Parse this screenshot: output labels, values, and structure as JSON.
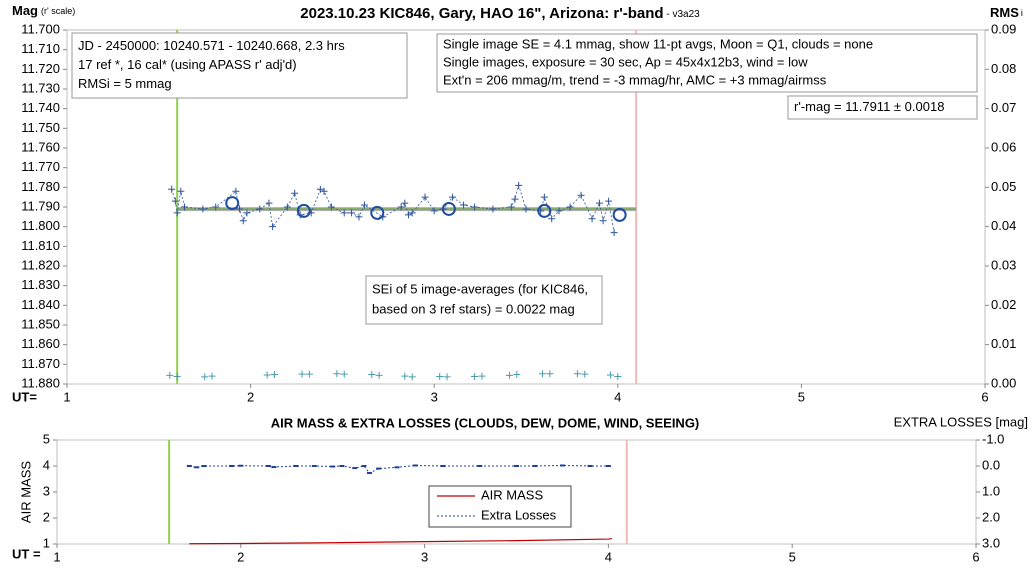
{
  "chart_data": [
    {
      "type": "line",
      "title": "2023.10.23 KIC846, Gary, HAO 16\", Arizona: r'-band",
      "subtitle": " - v3a23",
      "ylabel": "Mag",
      "ylabel_note": "(r' scale)",
      "y2label": "RMS",
      "y2label_note": "i",
      "xlabel": "UT=",
      "xlim": [
        1,
        6
      ],
      "xticks": [
        1,
        2,
        3,
        4,
        5,
        6
      ],
      "ylim": [
        11.7,
        11.88
      ],
      "yreverse": true,
      "yticks": [
        {
          "value": 11.7,
          "label": "11.700"
        },
        {
          "value": 11.71,
          "label": "11.710"
        },
        {
          "value": 11.72,
          "label": "11.720"
        },
        {
          "value": 11.73,
          "label": "11.730"
        },
        {
          "value": 11.74,
          "label": "11.740"
        },
        {
          "value": 11.75,
          "label": "11.750"
        },
        {
          "value": 11.76,
          "label": "11.760"
        },
        {
          "value": 11.77,
          "label": "11.770"
        },
        {
          "value": 11.78,
          "label": "11.780"
        },
        {
          "value": 11.79,
          "label": "11.790"
        },
        {
          "value": 11.8,
          "label": "11.800"
        },
        {
          "value": 11.81,
          "label": "11.810"
        },
        {
          "value": 11.82,
          "label": "11.820"
        },
        {
          "value": 11.83,
          "label": "11.830"
        },
        {
          "value": 11.84,
          "label": "11.840"
        },
        {
          "value": 11.85,
          "label": "11.850"
        },
        {
          "value": 11.86,
          "label": "11.860"
        },
        {
          "value": 11.87,
          "label": "11.870"
        },
        {
          "value": 11.88,
          "label": "11.880"
        }
      ],
      "y2lim": [
        0,
        0.09
      ],
      "y2ticks": [
        {
          "value": 0,
          "label": "0.00"
        },
        0.01,
        0.02,
        0.03,
        0.04,
        0.05,
        0.06,
        0.07,
        0.08,
        0.09
      ],
      "vlines": [
        {
          "x": 1.6,
          "color": "#92d050"
        },
        {
          "x": 4.1,
          "color": "#f4b6b6"
        }
      ],
      "annotations": [
        {
          "lines": [
            "JD - 2450000: 10240.571 - 10240.668, 2.3 hrs",
            "17 ref *, 16 cal* (using APASS r' adj'd)",
            "RMSi = 5 mmag"
          ]
        },
        {
          "lines": [
            "Single image SE = 4.1 mmag, show  11-pt avgs, Moon = Q1, clouds = none",
            "Single images, exposure = 30 sec, Ap = 45x4x12b3, wind = low",
            "Ext'n = 206 mmag/m, trend = -3  mmag/hr, AMC = +3 mmag/airmss"
          ]
        },
        {
          "lines": [
            "r'-mag = 11.7911 ± 0.0018"
          ]
        },
        {
          "lines": [
            "SEi of 5 image-averages (for KIC846,",
            "based on 3 ref stars) = 0.0022 mag"
          ]
        }
      ],
      "series": [
        {
          "color": "#b0b0b0",
          "line": "solid",
          "width": 4,
          "marker": "none",
          "x": [
            1.6,
            4.1
          ],
          "values": [
            11.7911,
            11.7911
          ]
        },
        {
          "color": "#70ad47",
          "line": "solid",
          "width": 1.5,
          "marker": "none",
          "x": [
            1.6,
            4.1
          ],
          "values": [
            11.7911,
            11.7911
          ]
        },
        {
          "color": "#2f5597",
          "line": "dashed",
          "width": 0.8,
          "marker": "plus",
          "x": [
            1.57,
            1.59,
            1.6,
            1.62,
            1.64,
            1.74,
            1.81,
            1.92,
            1.94,
            1.96,
            1.98,
            2.05,
            2.1,
            2.12,
            2.2,
            2.24,
            2.27,
            2.33,
            2.38,
            2.4,
            2.44,
            2.51,
            2.55,
            2.59,
            2.62,
            2.72,
            2.82,
            2.84,
            2.86,
            2.88,
            2.95,
            3.0,
            3.05,
            3.1,
            3.16,
            3.22,
            3.32,
            3.42,
            3.44,
            3.46,
            3.5,
            3.58,
            3.6,
            3.64,
            3.68,
            3.74,
            3.8,
            3.86,
            3.9,
            3.92,
            3.95,
            3.98
          ],
          "values": [
            11.781,
            11.787,
            11.793,
            11.782,
            11.79,
            11.791,
            11.79,
            11.782,
            11.791,
            11.797,
            11.793,
            11.791,
            11.788,
            11.8,
            11.79,
            11.783,
            11.794,
            11.793,
            11.781,
            11.782,
            11.79,
            11.793,
            11.793,
            11.795,
            11.789,
            11.795,
            11.79,
            11.788,
            11.794,
            11.793,
            11.785,
            11.792,
            11.791,
            11.785,
            11.789,
            11.79,
            11.791,
            11.79,
            11.786,
            11.779,
            11.791,
            11.792,
            11.785,
            11.796,
            11.792,
            11.79,
            11.784,
            11.796,
            11.788,
            11.797,
            11.787,
            11.803
          ]
        },
        {
          "color": "#1f4e9f",
          "line": "none",
          "marker": "circle",
          "x": [
            1.9,
            2.29,
            2.69,
            3.08,
            3.6,
            4.01
          ],
          "values": [
            11.788,
            11.792,
            11.793,
            11.791,
            11.792,
            11.794
          ]
        },
        {
          "color": "#4a9bb0",
          "line": "none",
          "marker": "plus",
          "axis": "y2",
          "x": [
            1.56,
            1.6,
            1.75,
            1.79,
            2.09,
            2.13,
            2.28,
            2.32,
            2.47,
            2.51,
            2.66,
            2.7,
            2.84,
            2.88,
            3.03,
            3.07,
            3.22,
            3.26,
            3.41,
            3.45,
            3.59,
            3.63,
            3.78,
            3.82,
            3.96,
            4.0
          ],
          "values": [
            0.0022,
            0.0019,
            0.0018,
            0.002,
            0.0023,
            0.0024,
            0.0025,
            0.0025,
            0.0026,
            0.0025,
            0.0024,
            0.0022,
            0.002,
            0.0018,
            0.0019,
            0.0018,
            0.0019,
            0.002,
            0.0022,
            0.0024,
            0.0026,
            0.0026,
            0.0026,
            0.0025,
            0.0023,
            0.0019
          ]
        }
      ]
    },
    {
      "type": "line",
      "title": "AIR MASS & EXTRA LOSSES (CLOUDS, DEW, DOME, WIND, SEEING)",
      "ylabel": "AIR MASS",
      "y2label": "EXTRA LOSSES [mag]",
      "xlabel": "UT =",
      "xlim": [
        1,
        6
      ],
      "xticks": [
        1,
        2,
        3,
        4,
        5,
        6
      ],
      "ylim": [
        1,
        5
      ],
      "yticks": [
        1,
        2,
        3,
        4,
        5
      ],
      "y2lim": [
        -1,
        3
      ],
      "y2reverse": true,
      "y2ticks": [
        {
          "value": -1,
          "label": "-1.0"
        },
        {
          "value": 0,
          "label": "0.0"
        },
        {
          "value": 1,
          "label": "1.0"
        },
        {
          "value": 2,
          "label": "2.0"
        },
        {
          "value": 3,
          "label": "3.0"
        }
      ],
      "vlines": [
        {
          "x": 1.61,
          "color": "#92d050"
        },
        {
          "x": 4.1,
          "color": "#f4b6b6"
        }
      ],
      "legend": "center",
      "series": [
        {
          "name": "AIR MASS",
          "color": "#c00000",
          "line": "solid",
          "width": 1.2,
          "marker": "none",
          "x": [
            1.72,
            2.0,
            2.5,
            3.0,
            3.5,
            4.0,
            4.02
          ],
          "values": [
            1.01,
            1.02,
            1.05,
            1.09,
            1.13,
            1.19,
            1.21
          ]
        },
        {
          "name": "Extra Losses",
          "color": "#1f3f9f",
          "line": "dashed",
          "width": 1,
          "marker": "dash",
          "axis": "y2",
          "x": [
            1.72,
            1.76,
            1.8,
            1.95,
            2.0,
            2.15,
            2.18,
            2.3,
            2.4,
            2.5,
            2.55,
            2.62,
            2.67,
            2.7,
            2.75,
            2.85,
            2.95,
            3.1,
            3.3,
            3.5,
            3.6,
            3.75,
            3.9,
            4.0
          ],
          "values": [
            0.0,
            0.05,
            0.0,
            0.0,
            -0.01,
            0.0,
            0.04,
            0.0,
            0.0,
            0.02,
            0.0,
            0.08,
            0.0,
            0.27,
            0.1,
            0.05,
            -0.02,
            0.0,
            0.0,
            0.0,
            0.0,
            -0.02,
            0.0,
            0.0
          ]
        }
      ]
    }
  ]
}
